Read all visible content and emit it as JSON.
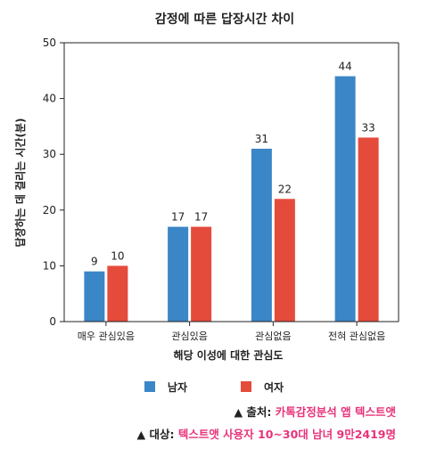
{
  "chart_data": {
    "type": "bar",
    "title": "감정에 따른 답장시간 차이",
    "xlabel": "해당 이성에 대한 관심도",
    "ylabel": "답장하는 데 걸리는 시간(분)",
    "categories": [
      "매우 관심있음",
      "관심있음",
      "관심없음",
      "전혀 관심없음"
    ],
    "series": [
      {
        "name": "남자",
        "values": [
          9,
          17,
          31,
          44
        ],
        "color": "#3b86c6"
      },
      {
        "name": "여자",
        "values": [
          10,
          17,
          22,
          33
        ],
        "color": "#e54b3b"
      }
    ],
    "ylim": [
      0,
      50
    ],
    "yticks": [
      0,
      10,
      20,
      30,
      40,
      50
    ],
    "grid": false,
    "legend": "bottom"
  },
  "legend": {
    "male": "남자",
    "female": "여자",
    "male_color": "#3b86c6",
    "female_color": "#e54b3b"
  },
  "source": {
    "line1_label": "▲ 출처: ",
    "line1_value": "카톡감정분석 앱 텍스트앳",
    "line2_label": "▲ 대상: ",
    "line2_value": "텍스트앳 사용자 10~30대 남녀 9만2419명"
  }
}
